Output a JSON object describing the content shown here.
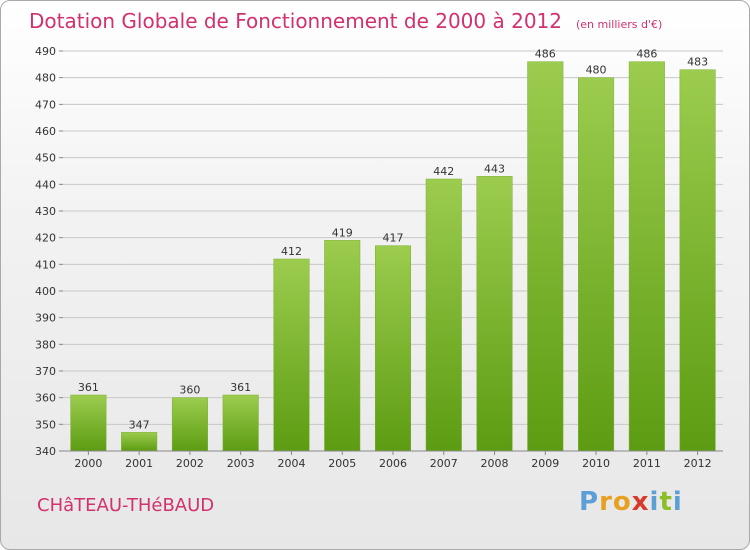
{
  "header": {
    "title": "Dotation Globale de Fonctionnement de 2000 à 2012",
    "unit": "(en milliers d'€)"
  },
  "commune": "CHâTEAU-THéBAUD",
  "brand": {
    "letters": [
      "P",
      "r",
      "o",
      "x",
      "i",
      "t",
      "i"
    ],
    "colors": [
      "#5c9fd6",
      "#e8a020",
      "#e8a020",
      "#d83a2e",
      "#5c9fd6",
      "#8cbf26",
      "#5c9fd6"
    ]
  },
  "colors": {
    "bar_top": "#9ccc4e",
    "bar_bottom": "#5c9c12",
    "grid": "#c8c8c8",
    "text": "#333333",
    "title": "#d2306e"
  },
  "chart_data": {
    "type": "bar",
    "categories": [
      "2000",
      "2001",
      "2002",
      "2003",
      "2004",
      "2005",
      "2006",
      "2007",
      "2008",
      "2009",
      "2010",
      "2011",
      "2012"
    ],
    "values": [
      361,
      347,
      360,
      361,
      412,
      419,
      417,
      442,
      443,
      486,
      480,
      486,
      483
    ],
    "data_labels": [
      "361",
      "347",
      "360",
      "361",
      "412",
      "419",
      "417",
      "442",
      "443",
      "486",
      "480",
      "486",
      "483"
    ],
    "y_ticks": [
      340,
      350,
      360,
      370,
      380,
      390,
      400,
      410,
      420,
      430,
      440,
      450,
      460,
      470,
      480,
      490
    ],
    "ylim": [
      340,
      490
    ],
    "grid": true,
    "legend": false
  }
}
